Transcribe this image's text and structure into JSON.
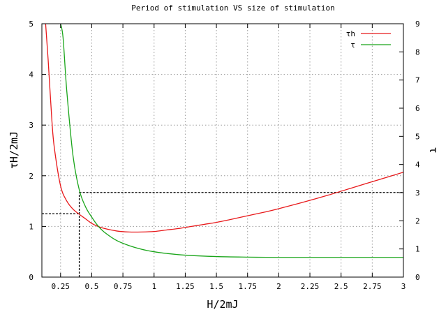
{
  "chart_data": {
    "type": "line",
    "title": "Period of stimulation VS size of stimulation",
    "xlabel": "H/2mJ",
    "ylabel": "τH/2mJ",
    "y2label": "τ",
    "xlim": [
      0.1,
      3.0
    ],
    "ylim": [
      0,
      5
    ],
    "y2lim": [
      0,
      9
    ],
    "x_ticks": [
      0.25,
      0.5,
      0.75,
      1,
      1.25,
      1.5,
      1.75,
      2,
      2.25,
      2.5,
      2.75,
      3
    ],
    "x_tick_labels": [
      "0.25",
      "0.5",
      "0.75",
      "1",
      "1.25",
      "1.5",
      "1.75",
      "2",
      "2.25",
      "2.5",
      "2.75",
      "3"
    ],
    "y_ticks": [
      0,
      1,
      2,
      3,
      4,
      5
    ],
    "y_tick_labels": [
      "0",
      "1",
      "2",
      "3",
      "4",
      "5"
    ],
    "y2_ticks": [
      0,
      1,
      2,
      3,
      4,
      5,
      6,
      7,
      8,
      9
    ],
    "y2_tick_labels": [
      "0",
      "1",
      "2",
      "3",
      "4",
      "5",
      "6",
      "7",
      "8",
      "9"
    ],
    "grid": true,
    "legend_position": "top-right",
    "series": [
      {
        "name": "τh",
        "axis": "left",
        "color": "#e8191b",
        "x": [
          0.13,
          0.15,
          0.18,
          0.2,
          0.25,
          0.3,
          0.35,
          0.4,
          0.45,
          0.5,
          0.55,
          0.6,
          0.7,
          0.8,
          0.9,
          1.0,
          1.1,
          1.2,
          1.3,
          1.4,
          1.5,
          1.6,
          1.75,
          1.9,
          2.0,
          2.2,
          2.4,
          2.6,
          2.8,
          3.0
        ],
        "y": [
          5.0,
          4.3,
          3.1,
          2.55,
          1.8,
          1.5,
          1.34,
          1.24,
          1.15,
          1.06,
          1.0,
          0.96,
          0.91,
          0.89,
          0.89,
          0.9,
          0.93,
          0.96,
          1.0,
          1.04,
          1.08,
          1.13,
          1.21,
          1.29,
          1.35,
          1.48,
          1.62,
          1.77,
          1.92,
          2.07
        ]
      },
      {
        "name": "τ",
        "axis": "right",
        "color": "#1aa51a",
        "x": [
          0.25,
          0.27,
          0.3,
          0.35,
          0.4,
          0.45,
          0.5,
          0.55,
          0.6,
          0.7,
          0.8,
          0.9,
          1.0,
          1.1,
          1.25,
          1.5,
          1.75,
          2.0,
          2.5,
          3.0
        ],
        "y": [
          9.0,
          8.5,
          6.6,
          4.3,
          3.1,
          2.5,
          2.13,
          1.82,
          1.6,
          1.3,
          1.12,
          0.99,
          0.9,
          0.84,
          0.78,
          0.73,
          0.71,
          0.7,
          0.7,
          0.7
        ]
      }
    ],
    "annotations": [
      {
        "type": "hline",
        "axis": "left",
        "y": 1.25,
        "x_from": 0.1,
        "x_to": 0.4
      },
      {
        "type": "vline",
        "x": 0.4,
        "y_from": 0,
        "y_to": 1.67
      },
      {
        "type": "hline",
        "axis": "left",
        "y": 1.67,
        "x_from": 0.4,
        "x_to": 3.0
      }
    ]
  }
}
